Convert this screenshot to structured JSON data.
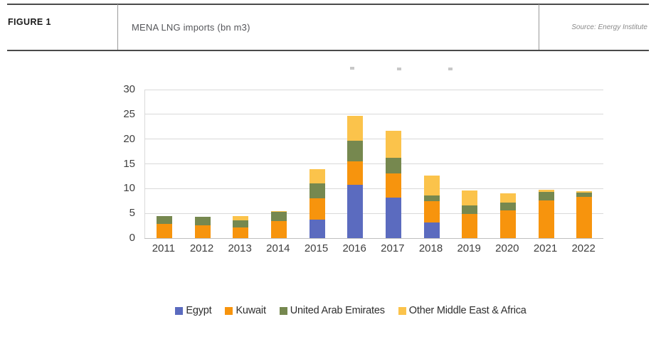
{
  "figure": {
    "label": "FIGURE 1",
    "title": "MENA LNG imports (bn m3)",
    "source": "Source: Energy Institute"
  },
  "chart_data": {
    "type": "bar",
    "stacked": true,
    "title": "",
    "categories": [
      "2011",
      "2012",
      "2013",
      "2014",
      "2015",
      "2016",
      "2017",
      "2018",
      "2019",
      "2020",
      "2021",
      "2022"
    ],
    "series": [
      {
        "name": "Egypt",
        "color": "#5b6bbf",
        "values": [
          0,
          0,
          0,
          0,
          3.7,
          10.7,
          8.2,
          3.2,
          0,
          0,
          0,
          0
        ]
      },
      {
        "name": "Kuwait",
        "color": "#f7940d",
        "values": [
          2.9,
          2.6,
          2.1,
          3.5,
          4.4,
          4.8,
          4.9,
          4.3,
          4.9,
          5.6,
          7.6,
          8.3
        ]
      },
      {
        "name": "United Arab Emirates",
        "color": "#76884f",
        "values": [
          1.6,
          1.7,
          1.5,
          1.8,
          3.0,
          4.1,
          3.1,
          1.1,
          1.7,
          1.6,
          1.8,
          0.9
        ]
      },
      {
        "name": "Other Middle East & Africa",
        "color": "#fbc34b",
        "values": [
          0,
          0,
          0.9,
          0.2,
          2.8,
          5.1,
          5.5,
          4.1,
          3.0,
          1.9,
          0.3,
          0.3
        ]
      }
    ],
    "ylim": [
      0,
      30
    ],
    "ytick_step": 5,
    "xlabel": "",
    "ylabel": "",
    "grid": true,
    "legend_position": "bottom"
  }
}
